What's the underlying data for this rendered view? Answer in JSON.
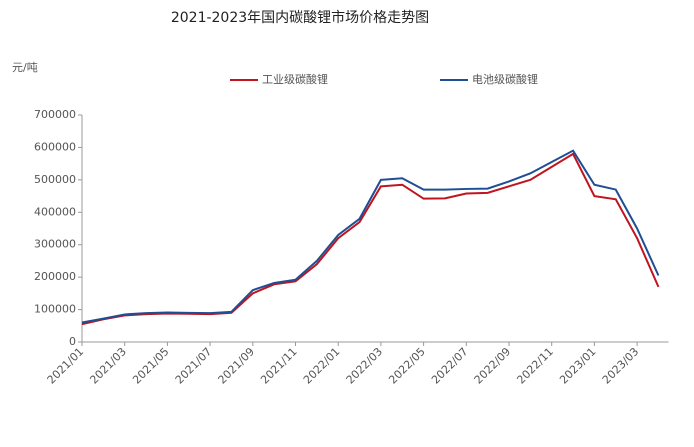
{
  "chart_data": {
    "type": "line",
    "title": "2021-2023年国内碳酸锂市场价格走势图",
    "y_label": "元/吨",
    "categories": [
      "2021/01",
      null,
      "2021/03",
      null,
      "2021/05",
      null,
      "2021/07",
      null,
      "2021/09",
      null,
      "2021/11",
      null,
      "2022/01",
      null,
      "2022/03",
      null,
      "2022/05",
      null,
      "2022/07",
      null,
      "2022/09",
      null,
      "2022/11",
      null,
      "2023/01",
      null,
      "2023/03",
      null
    ],
    "series": [
      {
        "name": "工业级碳酸锂",
        "color": "#c0141e",
        "values": [
          55000,
          70000,
          82000,
          86000,
          88000,
          87000,
          86000,
          90000,
          150000,
          178000,
          187000,
          240000,
          320000,
          370000,
          480000,
          485000,
          442000,
          443000,
          458000,
          460000,
          480000,
          500000,
          540000,
          580000,
          450000,
          440000,
          320000,
          170000
        ]
      },
      {
        "name": "电池级碳酸锂",
        "color": "#1f4e94",
        "values": [
          60000,
          72000,
          85000,
          89000,
          91000,
          90000,
          89000,
          93000,
          160000,
          182000,
          192000,
          250000,
          330000,
          380000,
          500000,
          505000,
          470000,
          470000,
          472000,
          473000,
          495000,
          520000,
          555000,
          590000,
          485000,
          470000,
          350000,
          205000
        ]
      }
    ],
    "ylim": [
      0,
      700000
    ],
    "yticks": [
      0,
      100000,
      200000,
      300000,
      400000,
      500000,
      600000,
      700000
    ],
    "legend": "top"
  }
}
